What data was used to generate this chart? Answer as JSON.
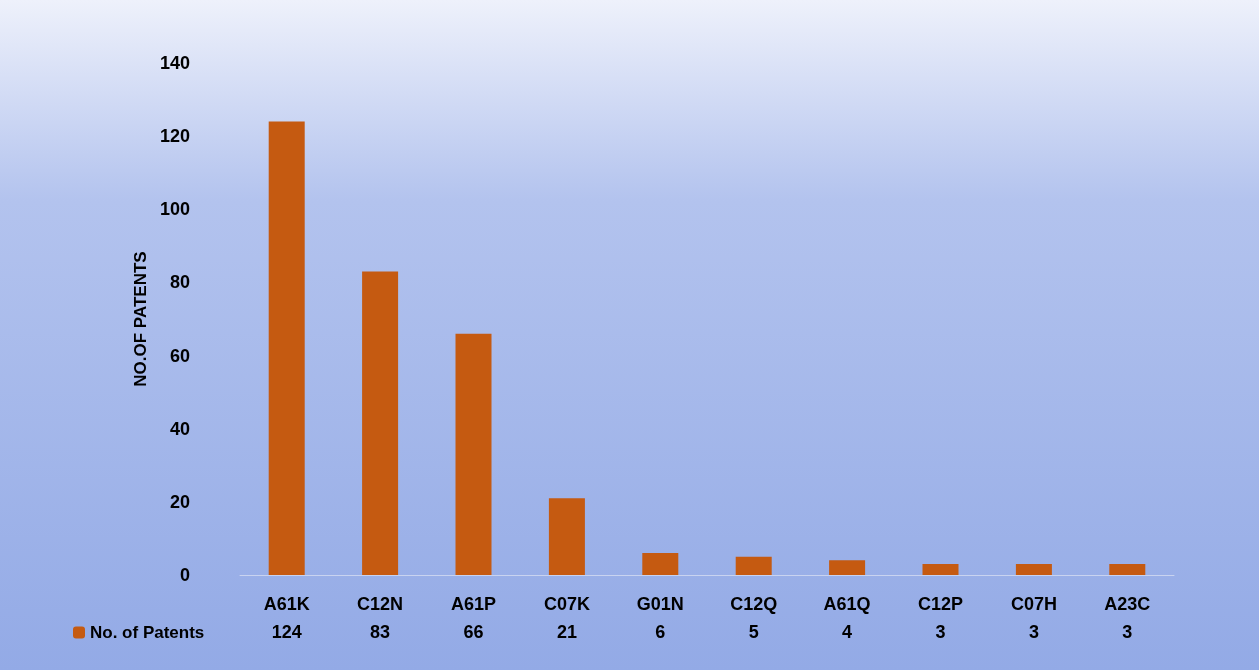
{
  "chart_data": {
    "type": "bar",
    "ylabel": "NO.OF PATENTS",
    "categories": [
      "A61K",
      "C12N",
      "A61P",
      "C07K",
      "G01N",
      "C12Q",
      "A61Q",
      "C12P",
      "C07H",
      "A23C"
    ],
    "series": [
      {
        "name": "No. of Patents",
        "color": "#c55a11",
        "values": [
          124,
          83,
          66,
          21,
          6,
          5,
          4,
          3,
          3,
          3
        ]
      }
    ],
    "ylim": [
      0,
      140
    ],
    "yticks": [
      0,
      20,
      40,
      60,
      80,
      100,
      120,
      140
    ],
    "grid": false,
    "legend": "bottom left",
    "data_labels": true
  }
}
